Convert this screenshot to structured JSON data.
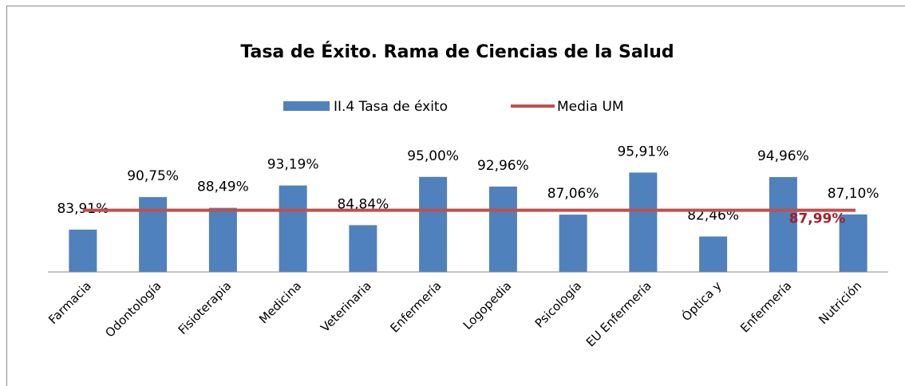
{
  "chart_data": {
    "type": "bar",
    "title": "Tasa de Éxito. Rama de Ciencias de la Salud",
    "categories": [
      "Farmacia",
      "Odontología",
      "Fisioterapia",
      "Medicina",
      "Veterinaria",
      "Enfermería",
      "Logopedia",
      "Psicología",
      "EU Enfermería",
      "Óptica y",
      "Enfermería",
      "Nutrición"
    ],
    "series": [
      {
        "name": "II.4 Tasa de éxito",
        "color": "#4f81bd",
        "values": [
          83.91,
          90.75,
          88.49,
          93.19,
          84.84,
          95.0,
          92.96,
          87.06,
          95.91,
          82.46,
          94.96,
          87.1
        ],
        "value_labels": [
          "83,91%",
          "90,75%",
          "88,49%",
          "93,19%",
          "84,84%",
          "95,00%",
          "92,96%",
          "87,06%",
          "95,91%",
          "82,46%",
          "94,96%",
          "87,10%"
        ]
      }
    ],
    "mean": {
      "name": "Media UM",
      "color": "#c0504d",
      "value": 87.99,
      "label": "87,99%"
    },
    "ylim": [
      75,
      100
    ]
  }
}
